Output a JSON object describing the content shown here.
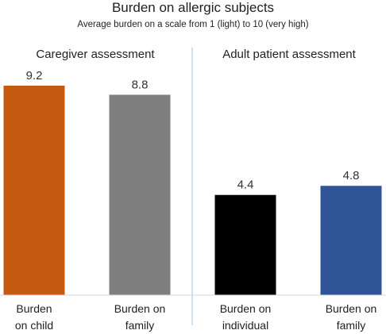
{
  "chart_data": {
    "type": "bar",
    "title": "Burden on allergic subjects",
    "subtitle": "Average burden on a scale from 1 (light) to 10 (very high)",
    "groups": [
      {
        "label": "Caregiver assessment"
      },
      {
        "label": "Adult patient assessment"
      }
    ],
    "categories": [
      [
        "Burden",
        "on child"
      ],
      [
        "Burden on",
        "family"
      ],
      [
        "Burden on",
        "individual"
      ],
      [
        "Burden on",
        "family"
      ]
    ],
    "values": [
      9.2,
      8.8,
      4.4,
      4.8
    ],
    "value_labels": [
      "9.2",
      "8.8",
      "4.4",
      "4.8"
    ],
    "colors": [
      "#c55a11",
      "#7f7f7f",
      "#000000",
      "#2f5597"
    ],
    "ylim": [
      0,
      10
    ],
    "grid": false
  }
}
